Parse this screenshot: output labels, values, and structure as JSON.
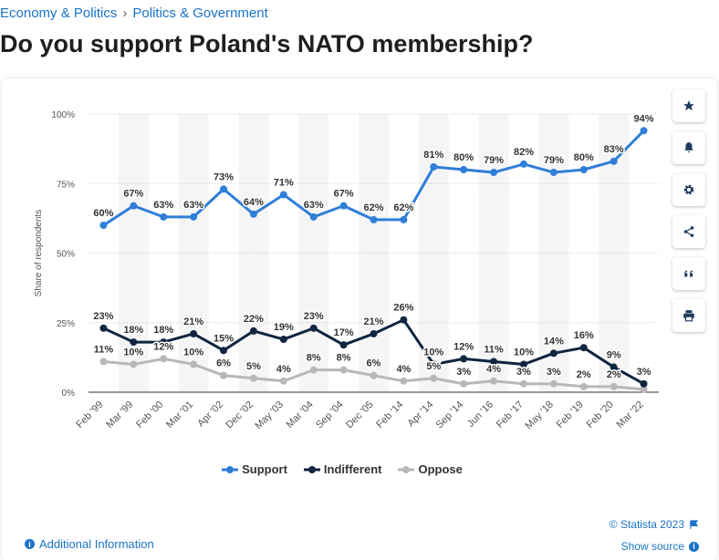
{
  "breadcrumb": {
    "item1": "Economy & Politics",
    "separator": "›",
    "item2": "Politics & Government"
  },
  "title": "Do you support Poland's NATO membership?",
  "tools": [
    {
      "name": "favorite-button",
      "icon": "star-icon"
    },
    {
      "name": "notification-button",
      "icon": "bell-icon"
    },
    {
      "name": "settings-button",
      "icon": "gear-icon"
    },
    {
      "name": "share-button",
      "icon": "share-icon"
    },
    {
      "name": "cite-button",
      "icon": "quote-icon"
    },
    {
      "name": "print-button",
      "icon": "print-icon"
    }
  ],
  "footer": {
    "additional_info": "Additional Information",
    "copyright": "© Statista 2023",
    "show_source": "Show source"
  },
  "colors": {
    "support": "#2f7ed8",
    "indifferent": "#0f2540",
    "oppose": "#b8b8b8",
    "link": "#1a73c6"
  },
  "chart_data": {
    "type": "line",
    "categories": [
      "Feb '99",
      "Mar '99",
      "Feb '00",
      "Mar '01",
      "Apr '02",
      "Dec '02",
      "May '03",
      "Mar '04",
      "Sep '04",
      "Dec '05",
      "Feb '14",
      "Apr '14",
      "Sep '14",
      "Jun '16",
      "Feb '17",
      "May '18",
      "Feb '19",
      "Feb '20",
      "Mar '22"
    ],
    "series": [
      {
        "name": "Support",
        "values": [
          60,
          67,
          63,
          63,
          73,
          64,
          71,
          63,
          67,
          62,
          62,
          81,
          80,
          79,
          82,
          79,
          80,
          83,
          94
        ]
      },
      {
        "name": "Indifferent",
        "values": [
          23,
          18,
          18,
          21,
          15,
          22,
          19,
          23,
          17,
          21,
          26,
          10,
          12,
          11,
          10,
          14,
          16,
          9,
          3
        ]
      },
      {
        "name": "Oppose",
        "values": [
          11,
          10,
          12,
          10,
          6,
          5,
          4,
          8,
          8,
          6,
          4,
          5,
          3,
          4,
          3,
          3,
          2,
          2,
          1
        ]
      }
    ],
    "labels": {
      "Support": [
        "60%",
        "67%",
        "63%",
        "63%",
        "73%",
        "64%",
        "71%",
        "63%",
        "67%",
        "62%",
        "62%",
        "81%",
        "80%",
        "79%",
        "82%",
        "79%",
        "80%",
        "83%",
        "94%"
      ],
      "Indifferent": [
        "23%",
        "18%",
        "18%",
        "21%",
        "15%",
        "22%",
        "19%",
        "23%",
        "17%",
        "21%",
        "26%",
        "10%",
        "12%",
        "11%",
        "10%",
        "14%",
        "16%",
        "9%",
        "3%"
      ],
      "Oppose": [
        "11%",
        "10%",
        "12%",
        "10%",
        "6%",
        "5%",
        "4%",
        "8%",
        "8%",
        "6%",
        "4%",
        "5%",
        "3%",
        "4%",
        "3%",
        "3%",
        "2%",
        "2%",
        ""
      ]
    },
    "ylabel": "Share of respondents",
    "ylim": [
      0,
      100
    ],
    "yticks": [
      0,
      25,
      50,
      75,
      100
    ],
    "ytick_labels": [
      "0%",
      "25%",
      "50%",
      "75%",
      "100%"
    ],
    "grid": true,
    "legend_position": "bottom"
  }
}
